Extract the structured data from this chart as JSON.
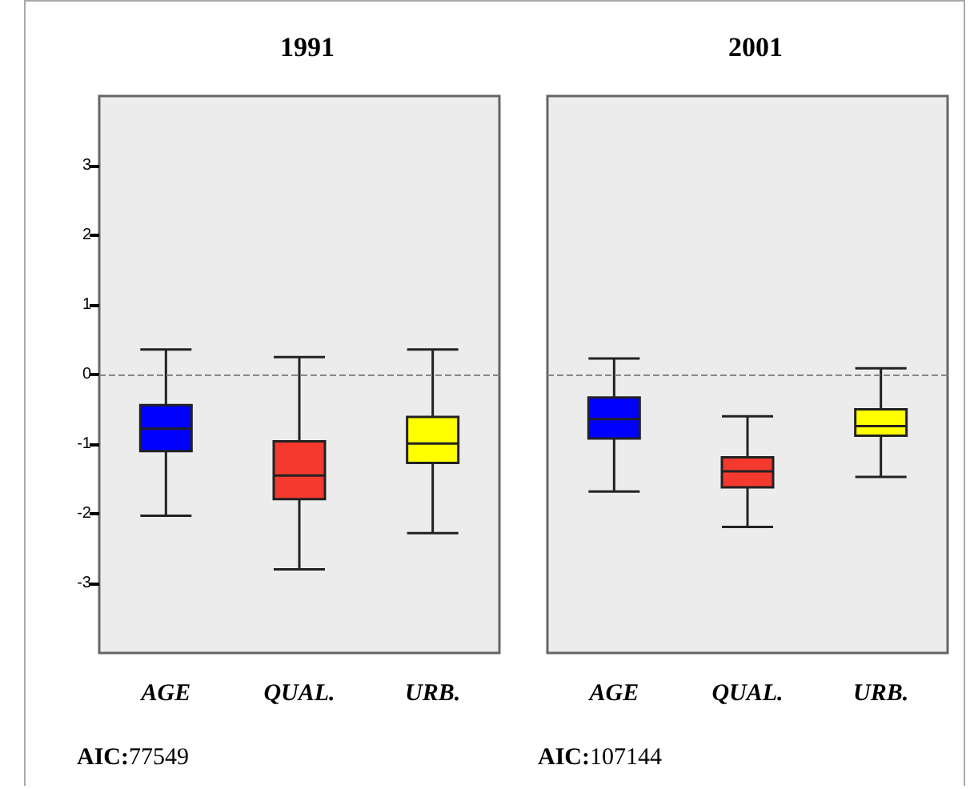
{
  "chart_data": [
    {
      "type": "box",
      "title": "1991",
      "categories": [
        "AGE",
        "QUAL.",
        "URB."
      ],
      "colors": [
        "#0000ff",
        "#f43a2f",
        "#ffff00"
      ],
      "boxes": [
        {
          "low": -2.03,
          "q1": -1.1,
          "median": -0.78,
          "q3": -0.44,
          "high": 0.36
        },
        {
          "low": -2.8,
          "q1": -1.79,
          "median": -1.45,
          "q3": -0.96,
          "high": 0.25
        },
        {
          "low": -2.28,
          "q1": -1.27,
          "median": -0.99,
          "q3": -0.61,
          "high": 0.36
        }
      ],
      "ylim": [
        -4,
        4
      ],
      "yticks": [
        -3,
        -2,
        -1,
        0,
        1,
        2,
        3
      ],
      "ref_lines": [
        {
          "axis": "y",
          "value": 0,
          "color": "#888888",
          "line_style": "dashed"
        }
      ],
      "annotations": [
        "AIC:77549"
      ]
    },
    {
      "type": "box",
      "title": "2001",
      "categories": [
        "AGE",
        "QUAL.",
        "URB."
      ],
      "colors": [
        "#0000ff",
        "#f43a2f",
        "#ffff00"
      ],
      "boxes": [
        {
          "low": -1.68,
          "q1": -0.92,
          "median": -0.64,
          "q3": -0.33,
          "high": 0.23
        },
        {
          "low": -2.19,
          "q1": -1.62,
          "median": -1.39,
          "q3": -1.19,
          "high": -0.6
        },
        {
          "low": -1.47,
          "q1": -0.88,
          "median": -0.74,
          "q3": -0.5,
          "high": 0.09
        }
      ],
      "ylim": [
        -4,
        4
      ],
      "yticks": [
        -3,
        -2,
        -1,
        0,
        1,
        2,
        3
      ],
      "tick_labels": "x",
      "ref_lines": [
        {
          "axis": "y",
          "value": 0,
          "color": "#888888",
          "line_style": "dashed"
        }
      ],
      "annotations": [
        "AIC:107144"
      ]
    }
  ]
}
